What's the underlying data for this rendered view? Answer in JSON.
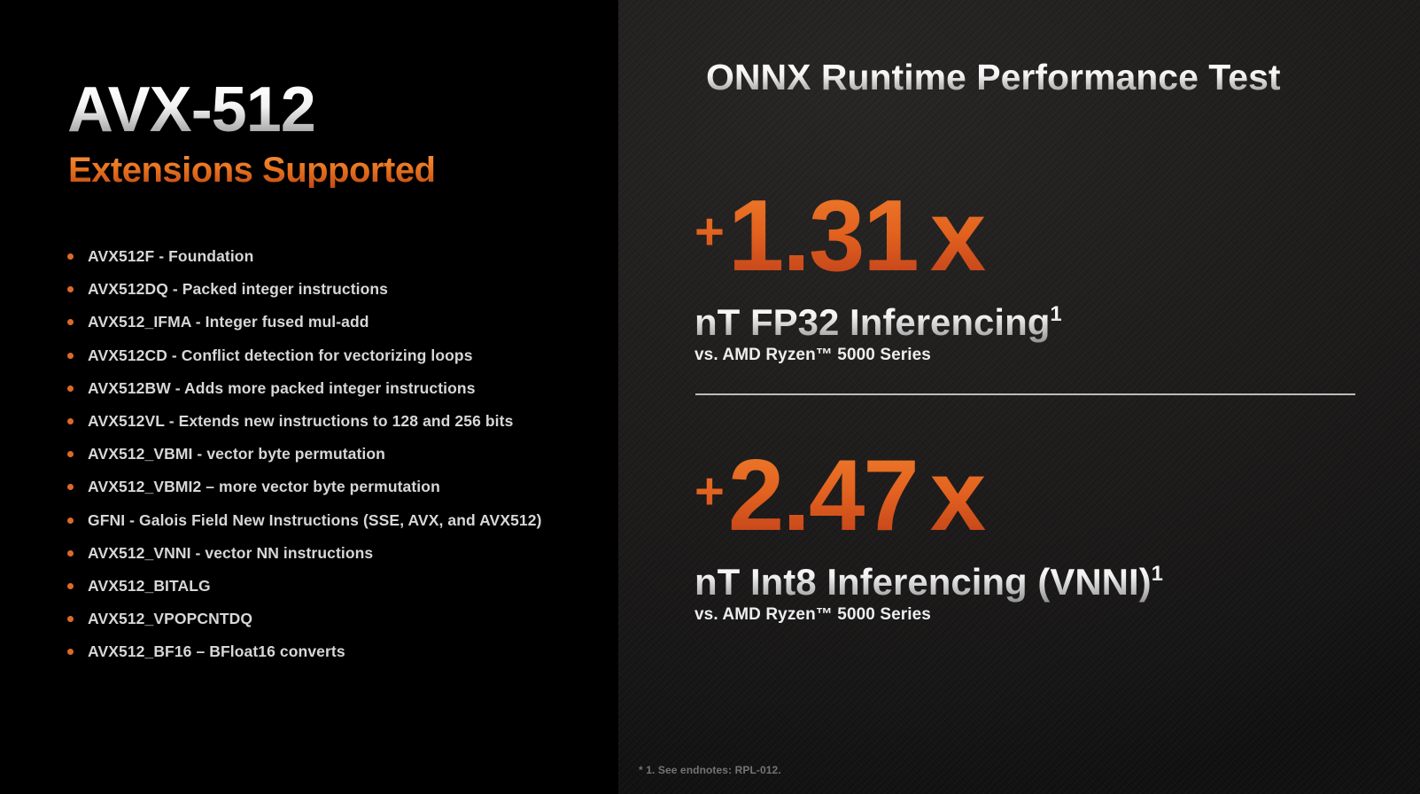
{
  "left_panel": {
    "title": "AVX-512",
    "subtitle": "Extensions Supported",
    "bullets": [
      "AVX512F - Foundation",
      "AVX512DQ - Packed integer instructions",
      "AVX512_IFMA - Integer fused mul-add",
      "AVX512CD - Conflict detection for vectorizing loops",
      "AVX512BW - Adds more packed integer instructions",
      "AVX512VL - Extends new instructions to 128 and 256 bits",
      "AVX512_VBMI - vector byte permutation",
      "AVX512_VBMI2 – more vector byte permutation",
      "GFNI - Galois Field New Instructions (SSE, AVX, and AVX512)",
      "AVX512_VNNI - vector NN instructions",
      "AVX512_BITALG",
      "AVX512_VPOPCNTDQ",
      "AVX512_BF16 – BFloat16 converts"
    ]
  },
  "right_panel": {
    "heading": "ONNX Runtime Performance Test",
    "stats": [
      {
        "prefix": "+",
        "value": "1.31",
        "suffix": "x",
        "label": "nT FP32 Inferencing",
        "label_sup": "1",
        "comparison": "vs. AMD Ryzen™ 5000 Series"
      },
      {
        "prefix": "+",
        "value": "2.47",
        "suffix": "x",
        "label": "nT Int8 Inferencing (VNNI)",
        "label_sup": "1",
        "comparison": "vs. AMD Ryzen™ 5000 Series"
      }
    ],
    "footnote": "* 1. See endnotes: RPL-012."
  },
  "colors": {
    "accent_orange": "#e8731f",
    "bullet_dot": "#dd6a28",
    "left_background": "#000000",
    "right_background": "#1e1c1b",
    "divider": "#bcbcbc",
    "body_text": "#d7d7d7",
    "footnote_text": "#767473"
  }
}
